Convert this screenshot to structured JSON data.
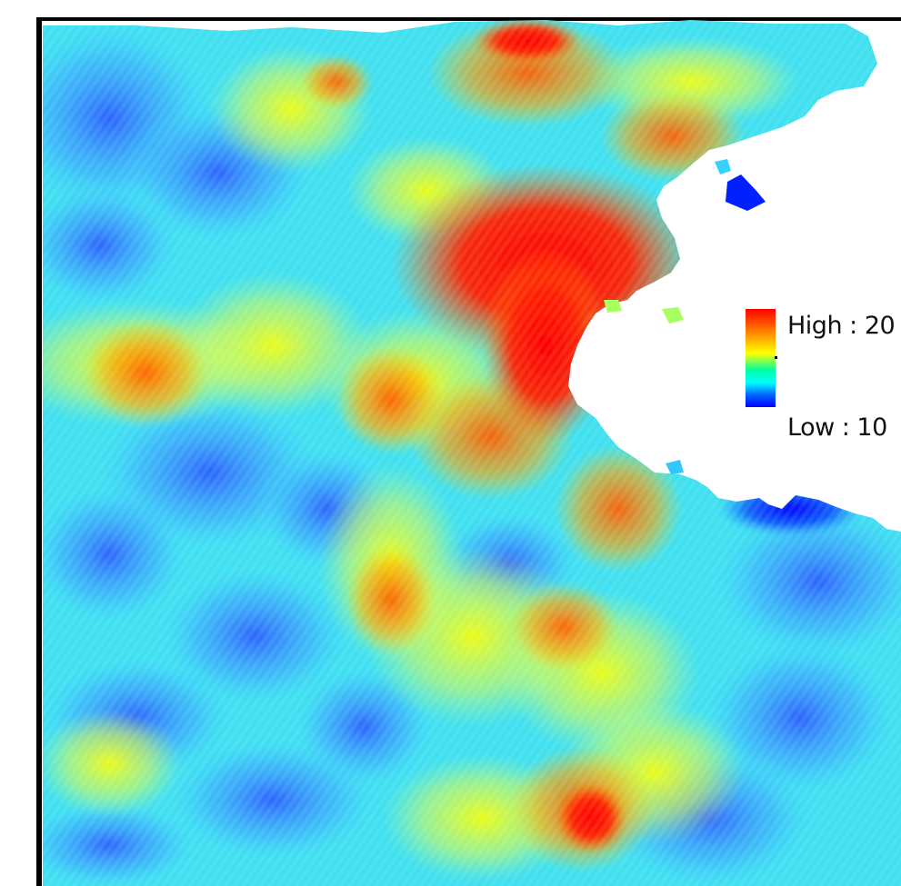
{
  "legend": {
    "high_label": "High : 20",
    "low_label": "Low : 10",
    "high_value": 20,
    "low_value": 10,
    "ramp_colors": [
      "#ff0000",
      "#ff8c00",
      "#ffff00",
      "#00ffff",
      "#0050ff",
      "#0000ff"
    ]
  },
  "colors": {
    "frame": "#000000",
    "background": "#ffffff"
  }
}
